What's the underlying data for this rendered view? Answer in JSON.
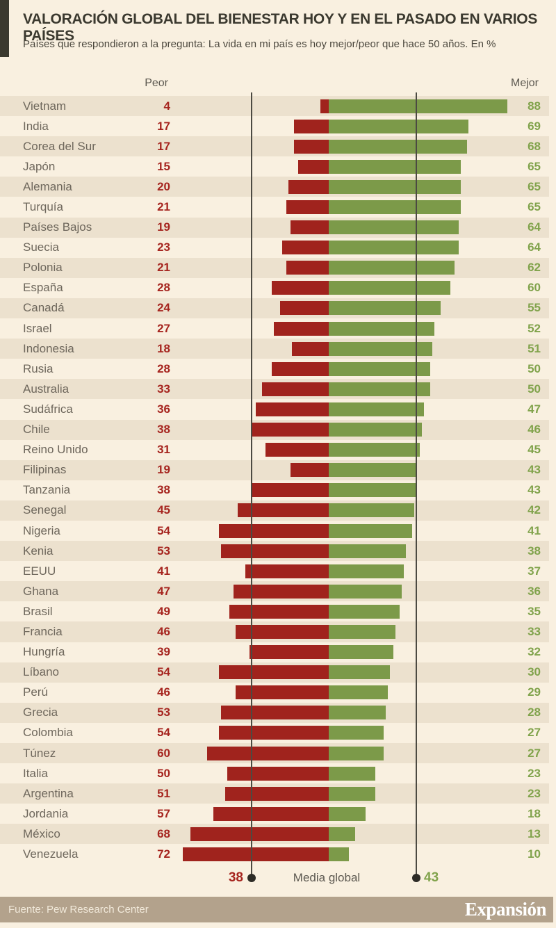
{
  "header": {
    "title": "VALORACIÓN GLOBAL DEL BIENESTAR HOY Y EN EL PASADO EN VARIOS PAÍSES",
    "subtitle": "Países que respondieron a la pregunta: La vida en mi país es hoy mejor/peor que hace 50 años. En %"
  },
  "columns": {
    "left_label": "Peor",
    "right_label": "Mejor"
  },
  "legend": {
    "peor_avg": "38",
    "label": "Media global",
    "mejor_avg": "43"
  },
  "footer": {
    "source": "Fuente: Pew Research Center",
    "brand": "Expansión"
  },
  "colors": {
    "bg": "#f9f0e0",
    "stripe": "#ece1ce",
    "dark": "#3b392f",
    "subtitle": "#4c483e",
    "axis_text": "#5c5850",
    "label_text": "#6e675c",
    "red_text": "#a6251f",
    "green_text": "#81a34c",
    "line": "#4c4a42",
    "dot": "#2d2b26",
    "footer_bg": "#b3a28c",
    "footer_text": "#f1e9da"
  },
  "chart_data": {
    "type": "bar",
    "subtype": "horizontal-diverging",
    "title": "Valoración global del bienestar hoy y en el pasado en varios países",
    "units": "%",
    "legend_position": "bottom",
    "grid": false,
    "categories": [
      "Vietnam",
      "India",
      "Corea del Sur",
      "Japón",
      "Alemania",
      "Turquía",
      "Países Bajos",
      "Suecia",
      "Polonia",
      "España",
      "Canadá",
      "Israel",
      "Indonesia",
      "Rusia",
      "Australia",
      "Sudáfrica",
      "Chile",
      "Reino Unido",
      "Filipinas",
      "Tanzania",
      "Senegal",
      "Nigeria",
      "Kenia",
      "EEUU",
      "Ghana",
      "Brasil",
      "Francia",
      "Hungría",
      "Líbano",
      "Perú",
      "Grecia",
      "Colombia",
      "Túnez",
      "Italia",
      "Argentina",
      "Jordania",
      "México",
      "Venezuela"
    ],
    "series": [
      {
        "name": "Peor",
        "direction": "left",
        "color": "#a0231d",
        "values": [
          4,
          17,
          17,
          15,
          20,
          21,
          19,
          23,
          21,
          28,
          24,
          27,
          18,
          28,
          33,
          36,
          38,
          31,
          19,
          38,
          45,
          54,
          53,
          41,
          47,
          49,
          46,
          39,
          54,
          46,
          53,
          54,
          60,
          50,
          51,
          57,
          68,
          72
        ]
      },
      {
        "name": "Mejor",
        "direction": "right",
        "color": "#7c9a49",
        "values": [
          88,
          69,
          68,
          65,
          65,
          65,
          64,
          64,
          62,
          60,
          55,
          52,
          51,
          50,
          50,
          47,
          46,
          45,
          43,
          43,
          42,
          41,
          38,
          37,
          36,
          35,
          33,
          32,
          30,
          29,
          28,
          27,
          27,
          23,
          23,
          18,
          13,
          10
        ]
      }
    ],
    "global_mean": {
      "peor": 38,
      "mejor": 43
    },
    "value_range": [
      0,
      88
    ]
  }
}
